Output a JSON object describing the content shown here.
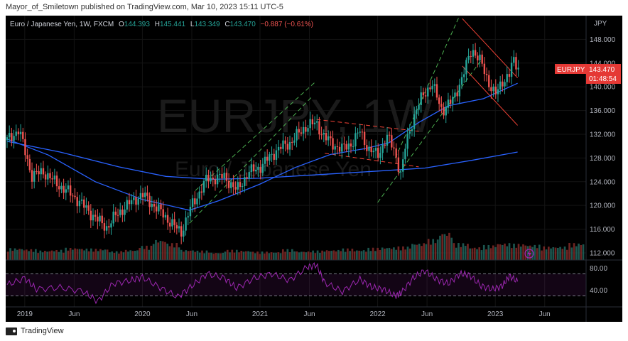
{
  "header": {
    "text": "Mayor_of_Smiletown published on TradingView.com, Mar 10, 2023 15:11 UTC-5"
  },
  "footer": {
    "brand": "TradingView"
  },
  "colors": {
    "background": "#000000",
    "up": "#26a69a",
    "down": "#ef5350",
    "ma_fast": "#2962ff",
    "ma_slow": "#2962ff",
    "rsi": "#9c27b0",
    "channel": "#4caf50",
    "resistance": "#f44336",
    "price_label": "#e53935"
  },
  "legend": {
    "symbol": "Euro / Japanese Yen, 1W, FXCM",
    "o_label": "O",
    "o_val": "144.393",
    "h_label": "H",
    "h_val": "145.441",
    "l_label": "L",
    "l_val": "143.349",
    "c_label": "C",
    "c_val": "143.470",
    "change": "−0.887 (−0.61%)"
  },
  "watermark": {
    "big": "EURJPY, 1W",
    "small": "Euro / Japanese Yen"
  },
  "price_label": {
    "ticker": "EURJPY",
    "price": "143.470",
    "countdown": "01:48:54"
  },
  "currency": "JPY",
  "chart_data": {
    "type": "candlestick",
    "title": "Euro / Japanese Yen, 1W, FXCM",
    "x_tick_labels": [
      "2019",
      "Jun",
      "2020",
      "Jun",
      "2021",
      "Jun",
      "2022",
      "Jun",
      "2023",
      "Jun"
    ],
    "price_ticks": [
      148,
      144,
      140,
      136,
      132,
      128,
      124,
      120,
      116,
      112
    ],
    "price_tick_labels": [
      "148.000",
      "144.000",
      "140.000",
      "136.000",
      "132.000",
      "128.000",
      "124.000",
      "120.000",
      "116.000",
      "112.000"
    ],
    "ylim": [
      110.8,
      152.0
    ],
    "rsi_ticks": [
      80,
      40
    ],
    "rsi_tick_labels": [
      "80.00",
      "40.00"
    ],
    "rsi_bands": [
      70,
      30
    ],
    "rsi_ylim": [
      10,
      95
    ],
    "weekly_close_path": [
      {
        "t": 2018.85,
        "close": 131.0
      },
      {
        "t": 2018.95,
        "close": 132.8
      },
      {
        "t": 2019.06,
        "close": 125.0
      },
      {
        "t": 2019.16,
        "close": 125.7
      },
      {
        "t": 2019.25,
        "close": 124.0
      },
      {
        "t": 2019.42,
        "close": 121.5
      },
      {
        "t": 2019.62,
        "close": 117.5
      },
      {
        "t": 2019.7,
        "close": 116.3
      },
      {
        "t": 2019.78,
        "close": 118.5
      },
      {
        "t": 2019.95,
        "close": 121.3
      },
      {
        "t": 2020.0,
        "close": 121.8
      },
      {
        "t": 2020.12,
        "close": 119.6
      },
      {
        "t": 2020.2,
        "close": 118.0
      },
      {
        "t": 2020.27,
        "close": 116.5
      },
      {
        "t": 2020.33,
        "close": 115.5
      },
      {
        "t": 2020.42,
        "close": 120.0
      },
      {
        "t": 2020.55,
        "close": 124.5
      },
      {
        "t": 2020.7,
        "close": 124.8
      },
      {
        "t": 2020.8,
        "close": 122.5
      },
      {
        "t": 2020.9,
        "close": 125.5
      },
      {
        "t": 2021.0,
        "close": 126.5
      },
      {
        "t": 2021.15,
        "close": 129.5
      },
      {
        "t": 2021.25,
        "close": 130.5
      },
      {
        "t": 2021.4,
        "close": 133.5
      },
      {
        "t": 2021.48,
        "close": 133.8
      },
      {
        "t": 2021.55,
        "close": 131.5
      },
      {
        "t": 2021.62,
        "close": 130.3
      },
      {
        "t": 2021.7,
        "close": 129.5
      },
      {
        "t": 2021.78,
        "close": 130.5
      },
      {
        "t": 2021.85,
        "close": 132.5
      },
      {
        "t": 2021.92,
        "close": 129.5
      },
      {
        "t": 2022.0,
        "close": 128.5
      },
      {
        "t": 2022.08,
        "close": 131.5
      },
      {
        "t": 2022.14,
        "close": 129.5
      },
      {
        "t": 2022.2,
        "close": 125.0
      },
      {
        "t": 2022.24,
        "close": 130.5
      },
      {
        "t": 2022.3,
        "close": 134.5
      },
      {
        "t": 2022.38,
        "close": 138.5
      },
      {
        "t": 2022.46,
        "close": 140.5
      },
      {
        "t": 2022.55,
        "close": 136.0
      },
      {
        "t": 2022.63,
        "close": 137.5
      },
      {
        "t": 2022.72,
        "close": 141.5
      },
      {
        "t": 2022.8,
        "close": 146.5
      },
      {
        "t": 2022.88,
        "close": 144.0
      },
      {
        "t": 2022.95,
        "close": 140.5
      },
      {
        "t": 2023.0,
        "close": 138.5
      },
      {
        "t": 2023.06,
        "close": 141.0
      },
      {
        "t": 2023.12,
        "close": 142.0
      },
      {
        "t": 2023.15,
        "close": 144.4
      },
      {
        "t": 2023.19,
        "close": 143.47
      }
    ],
    "ma_fast": {
      "name": "",
      "points": [
        [
          2018.85,
          131.2
        ],
        [
          2019.2,
          128.5
        ],
        [
          2019.6,
          124.0
        ],
        [
          2020.0,
          121.0
        ],
        [
          2020.4,
          119.2
        ],
        [
          2020.65,
          120.8
        ],
        [
          2021.0,
          123.6
        ],
        [
          2021.3,
          126.4
        ],
        [
          2021.6,
          128.6
        ],
        [
          2021.9,
          129.6
        ],
        [
          2022.1,
          130.6
        ],
        [
          2022.35,
          134.0
        ],
        [
          2022.6,
          136.8
        ],
        [
          2022.9,
          138.0
        ],
        [
          2023.19,
          140.6
        ]
      ]
    },
    "ma_slow": {
      "name": "",
      "points": [
        [
          2018.85,
          130.8
        ],
        [
          2019.3,
          129.0
        ],
        [
          2019.8,
          126.5
        ],
        [
          2020.2,
          124.9
        ],
        [
          2020.6,
          124.4
        ],
        [
          2021.0,
          124.6
        ],
        [
          2021.5,
          125.2
        ],
        [
          2022.0,
          125.8
        ],
        [
          2022.4,
          126.3
        ],
        [
          2022.8,
          127.6
        ],
        [
          2023.19,
          129.0
        ]
      ]
    },
    "channel_up": [
      {
        "from": [
          2020.4,
          117.0
        ],
        "to": [
          2021.45,
          138.5
        ]
      },
      {
        "from": [
          2020.45,
          122.5
        ],
        "to": [
          2021.48,
          141.0
        ]
      }
    ],
    "channel_up_2": [
      {
        "from": [
          2022.0,
          120.5
        ],
        "to": [
          2022.88,
          144.5
        ]
      },
      {
        "from": [
          2022.15,
          128.0
        ],
        "to": [
          2022.72,
          153.0
        ]
      }
    ],
    "down_trend": [
      {
        "from": [
          2021.48,
          134.5
        ],
        "to": [
          2022.35,
          132.5
        ]
      },
      {
        "from": [
          2021.55,
          128.8
        ],
        "to": [
          2022.35,
          126.5
        ]
      }
    ],
    "falling_channel": [
      {
        "from": [
          2022.72,
          151.5
        ],
        "to": [
          2023.19,
          141.5
        ]
      },
      {
        "from": [
          2022.72,
          143.5
        ],
        "to": [
          2023.19,
          133.5
        ]
      }
    ],
    "volume_rel": [
      0.35,
      0.32,
      0.28,
      0.3,
      0.36,
      0.34,
      0.33,
      0.26,
      0.3,
      0.42,
      0.6,
      0.5,
      0.3,
      0.28,
      0.22,
      0.3,
      0.28,
      0.25,
      0.24,
      0.32,
      0.26,
      0.28,
      0.3,
      0.34,
      0.3,
      0.36,
      0.38,
      0.4,
      0.5,
      0.62,
      0.82,
      0.5,
      0.38,
      0.44,
      0.5,
      0.48,
      0.45,
      0.4,
      0.4,
      0.5
    ],
    "rsi_path": [
      [
        2018.85,
        50
      ],
      [
        2019.0,
        62
      ],
      [
        2019.1,
        42
      ],
      [
        2019.3,
        45
      ],
      [
        2019.5,
        38
      ],
      [
        2019.62,
        20
      ],
      [
        2019.75,
        52
      ],
      [
        2019.9,
        58
      ],
      [
        2020.0,
        64
      ],
      [
        2020.15,
        45
      ],
      [
        2020.3,
        28
      ],
      [
        2020.42,
        48
      ],
      [
        2020.55,
        70
      ],
      [
        2020.7,
        62
      ],
      [
        2020.8,
        44
      ],
      [
        2020.95,
        62
      ],
      [
        2021.1,
        70
      ],
      [
        2021.25,
        58
      ],
      [
        2021.4,
        82
      ],
      [
        2021.48,
        86
      ],
      [
        2021.55,
        54
      ],
      [
        2021.7,
        38
      ],
      [
        2021.85,
        60
      ],
      [
        2021.95,
        46
      ],
      [
        2022.05,
        42
      ],
      [
        2022.15,
        30
      ],
      [
        2022.2,
        35
      ],
      [
        2022.3,
        62
      ],
      [
        2022.4,
        76
      ],
      [
        2022.5,
        60
      ],
      [
        2022.6,
        52
      ],
      [
        2022.7,
        70
      ],
      [
        2022.78,
        68
      ],
      [
        2022.88,
        48
      ],
      [
        2022.98,
        42
      ],
      [
        2023.06,
        48
      ],
      [
        2023.12,
        66
      ],
      [
        2023.19,
        56
      ]
    ]
  }
}
